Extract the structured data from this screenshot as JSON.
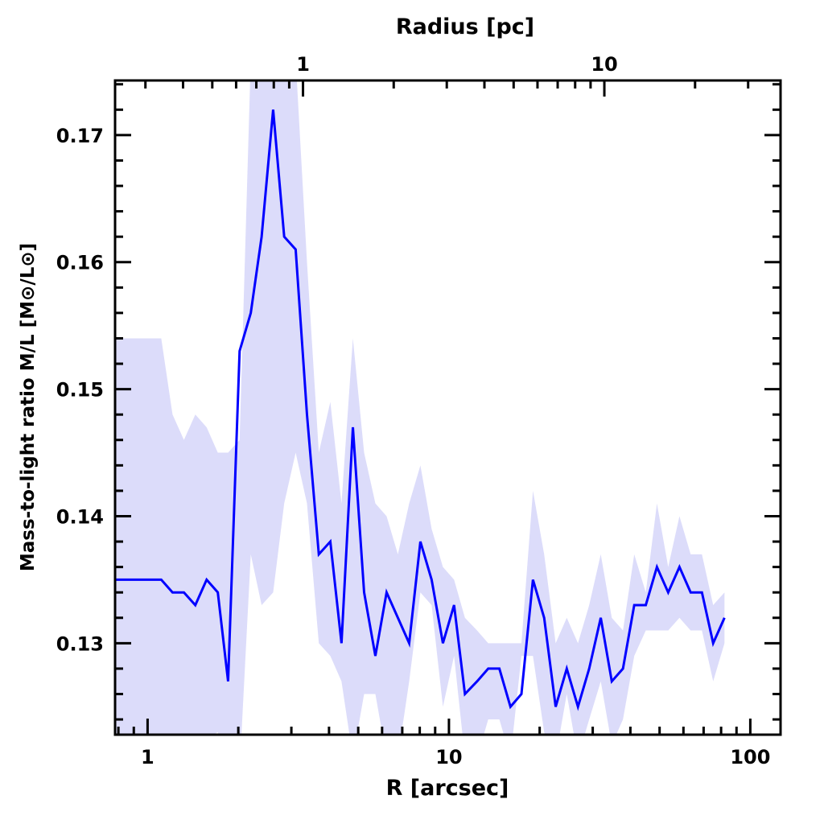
{
  "chart_data": {
    "type": "line",
    "title": "",
    "xlabel": "R [arcsec]",
    "top_xlabel": "Radius [pc]",
    "ylabel": "Mass-to-light ratio M/L [M⊙/L⊙]",
    "xscale": "log",
    "xlim": [
      0.78,
      126
    ],
    "ylim": [
      0.1228,
      0.1743
    ],
    "x_ticks": [
      {
        "v": 1,
        "label": "1"
      },
      {
        "v": 10,
        "label": "10"
      },
      {
        "v": 100,
        "label": "100"
      }
    ],
    "top_ticks": [
      {
        "v": 1,
        "label": "1"
      },
      {
        "v": 10,
        "label": "10"
      }
    ],
    "pc_per_arcsec": 0.305,
    "y_ticks": [
      {
        "v": 0.13,
        "label": "0.13"
      },
      {
        "v": 0.14,
        "label": "0.14"
      },
      {
        "v": 0.15,
        "label": "0.15"
      },
      {
        "v": 0.16,
        "label": "0.16"
      },
      {
        "v": 0.17,
        "label": "0.17"
      }
    ],
    "line_color": "#0000ff",
    "band_color": "#dcdcfa",
    "x": [
      0.78,
      1.11,
      1.21,
      1.32,
      1.44,
      1.57,
      1.71,
      1.85,
      2.02,
      2.2,
      2.39,
      2.61,
      2.84,
      3.1,
      3.38,
      3.7,
      4.04,
      4.4,
      4.8,
      5.23,
      5.7,
      6.21,
      6.77,
      7.38,
      8.04,
      8.76,
      9.55,
      10.4,
      11.3,
      12.4,
      13.5,
      14.7,
      16.0,
      17.4,
      19.0,
      20.7,
      22.6,
      24.6,
      26.8,
      29.2,
      31.9,
      34.7,
      37.8,
      41.2,
      45.0,
      49.0,
      53.4,
      58.2,
      63.4,
      69.1,
      75.3,
      82.1
    ],
    "y": [
      0.135,
      0.135,
      0.134,
      0.134,
      0.133,
      0.135,
      0.134,
      0.127,
      0.153,
      0.156,
      0.162,
      0.172,
      0.162,
      0.161,
      0.148,
      0.137,
      0.138,
      0.13,
      0.147,
      0.134,
      0.129,
      0.134,
      0.132,
      0.13,
      0.138,
      0.135,
      0.13,
      0.133,
      0.126,
      0.127,
      0.128,
      0.128,
      0.125,
      0.126,
      0.135,
      0.132,
      0.125,
      0.128,
      0.125,
      0.128,
      0.132,
      0.127,
      0.128,
      0.133,
      0.133,
      0.136,
      0.134,
      0.136,
      0.134,
      0.134,
      0.13,
      0.132
    ],
    "upper": [
      0.154,
      0.154,
      0.148,
      0.146,
      0.148,
      0.147,
      0.145,
      0.145,
      0.146,
      0.176,
      0.176,
      0.176,
      0.176,
      0.176,
      0.16,
      0.145,
      0.149,
      0.141,
      0.154,
      0.145,
      0.141,
      0.14,
      0.137,
      0.141,
      0.144,
      0.139,
      0.136,
      0.135,
      0.132,
      0.131,
      0.13,
      0.13,
      0.13,
      0.13,
      0.142,
      0.137,
      0.13,
      0.132,
      0.13,
      0.133,
      0.137,
      0.132,
      0.131,
      0.137,
      0.134,
      0.141,
      0.136,
      0.14,
      0.137,
      0.137,
      0.133,
      0.134
    ],
    "lower": [
      0.12,
      0.12,
      0.12,
      0.12,
      0.12,
      0.1225,
      0.123,
      0.12,
      0.12,
      0.137,
      0.133,
      0.134,
      0.141,
      0.145,
      0.141,
      0.13,
      0.129,
      0.127,
      0.121,
      0.126,
      0.126,
      0.121,
      0.121,
      0.127,
      0.134,
      0.133,
      0.125,
      0.129,
      0.121,
      0.121,
      0.124,
      0.124,
      0.121,
      0.129,
      0.129,
      0.123,
      0.121,
      0.126,
      0.121,
      0.124,
      0.127,
      0.122,
      0.124,
      0.129,
      0.131,
      0.131,
      0.131,
      0.132,
      0.131,
      0.131,
      0.127,
      0.13
    ]
  }
}
